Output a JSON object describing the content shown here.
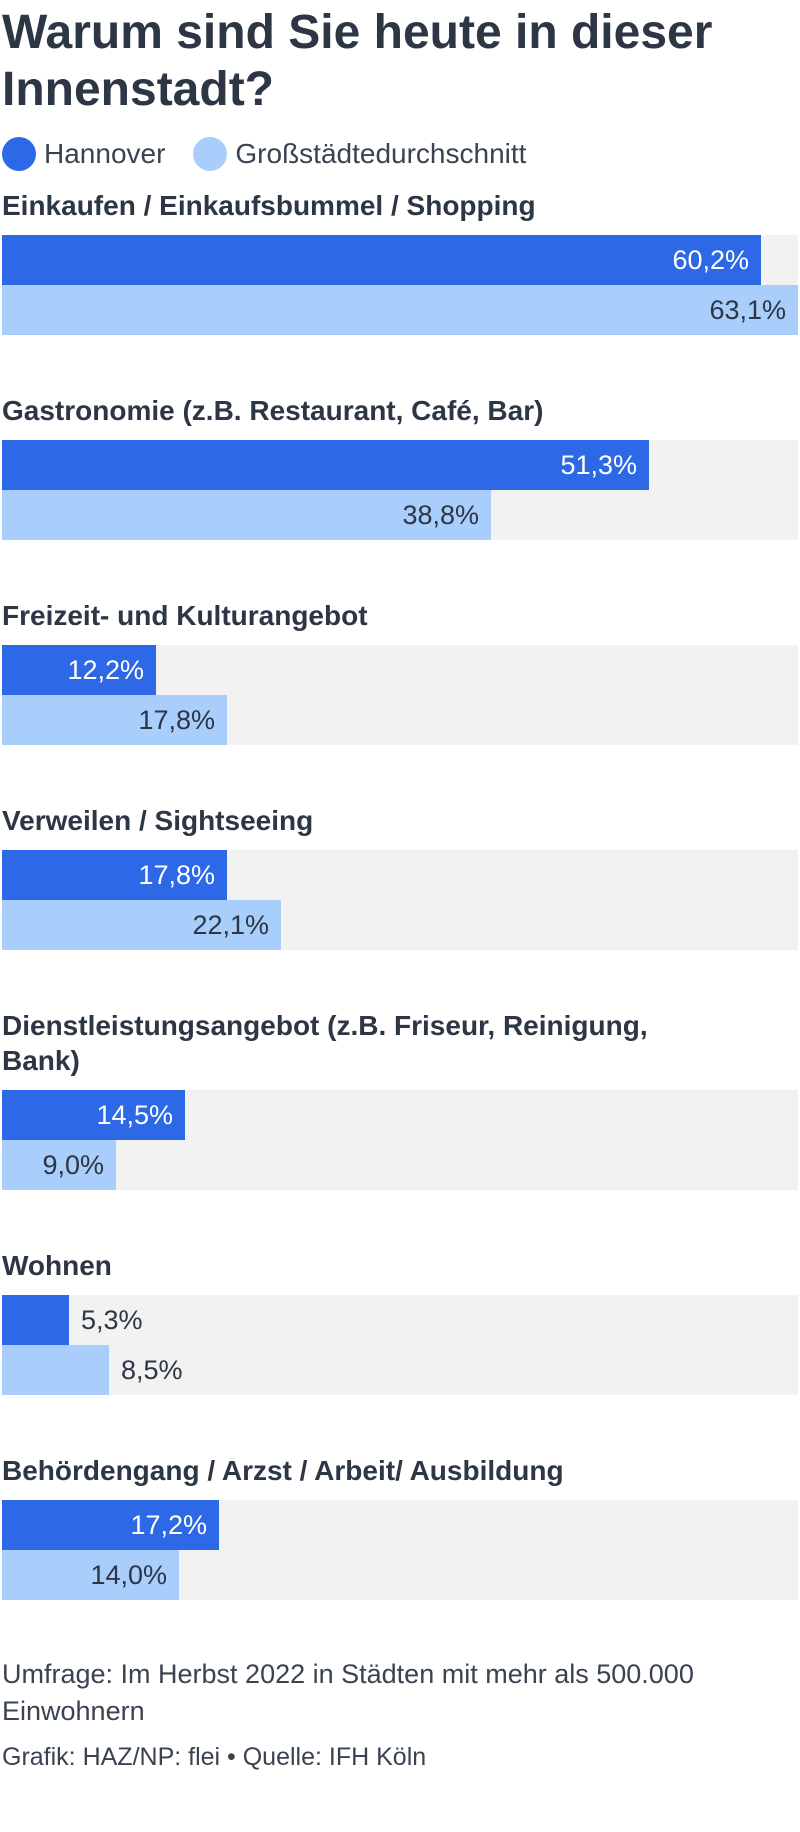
{
  "title": "Warum sind Sie heute in dieser Innenstadt?",
  "legend": {
    "hannover": "Hannover",
    "average": "Großstädtedurchschnitt"
  },
  "colors": {
    "hannover": "#2d68e6",
    "average": "#a9cefb",
    "track": "#f2f2f2"
  },
  "chart_data": {
    "type": "bar",
    "orientation": "horizontal",
    "title": "Warum sind Sie heute in dieser Innenstadt?",
    "categories": [
      "Einkaufen / Einkaufsbummel / Shopping",
      "Gastronomie (z.B. Restaurant, Café, Bar)",
      "Freizeit- und Kulturangebot",
      "Verweilen / Sightseeing",
      "Dienstleistungsangebot (z.B. Friseur, Reinigung, Bank)",
      "Wohnen",
      "Behördengang / Arzst / Arbeit/ Ausbildung"
    ],
    "series": [
      {
        "name": "Hannover",
        "values": [
          60.2,
          51.3,
          12.2,
          17.8,
          14.5,
          5.3,
          17.2
        ],
        "labels": [
          "60,2%",
          "51,3%",
          "12,2%",
          "17,8%",
          "14,5%",
          "5,3%",
          "17,2%"
        ]
      },
      {
        "name": "Großstädtedurchschnitt",
        "values": [
          63.1,
          38.8,
          17.8,
          22.1,
          9.0,
          8.5,
          14.0
        ],
        "labels": [
          "63,1%",
          "38,8%",
          "17,8%",
          "22,1%",
          "9,0%",
          "8,5%",
          "14,0%"
        ]
      }
    ],
    "xlim": [
      0,
      63.1
    ],
    "legend_position": "top-left"
  },
  "footer": {
    "note": "Umfrage: Im Herbst 2022 in Städten mit mehr als 500.000 Einwohnern",
    "credit": "Grafik: HAZ/NP: flei • Quelle: IFH Köln"
  }
}
